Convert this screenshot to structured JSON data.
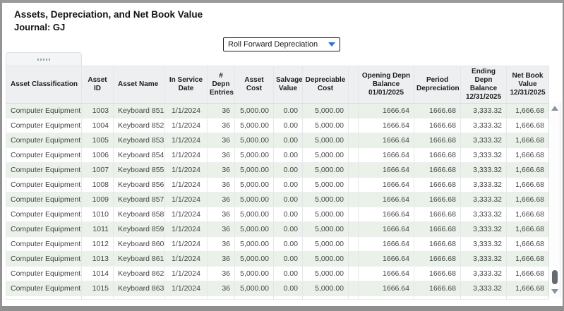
{
  "header": {
    "title": "Assets, Depreciation, and Net Book Value",
    "subtitle": "Journal: GJ"
  },
  "dropdown": {
    "value": "Roll Forward Depreciation"
  },
  "colors": {
    "accent_blue": "#2e6fd0",
    "row_alt_green": "#e9f1e9",
    "header_gray": "#edeff1",
    "frame_gray": "#949494"
  },
  "table": {
    "columns": [
      "Asset Classification",
      "Asset ID",
      "Asset Name",
      "In Service Date",
      "# Depn Entries",
      "Asset Cost",
      "Salvage Value",
      "Depreciable Cost",
      "",
      "Opening Depn Balance 01/01/2025",
      "Period Depreciation",
      "Ending Depn Balance 12/31/2025",
      "Net Book Value 12/31/2025"
    ],
    "rows": [
      [
        "Computer Equipment",
        "1003",
        "Keyboard 851",
        "1/1/2024",
        "36",
        "5,000.00",
        "0.00",
        "5,000.00",
        "",
        "1666.64",
        "1666.68",
        "3,333.32",
        "1,666.68"
      ],
      [
        "Computer Equipment",
        "1004",
        "Keyboard 852",
        "1/1/2024",
        "36",
        "5,000.00",
        "0.00",
        "5,000.00",
        "",
        "1666.64",
        "1666.68",
        "3,333.32",
        "1,666.68"
      ],
      [
        "Computer Equipment",
        "1005",
        "Keyboard 853",
        "1/1/2024",
        "36",
        "5,000.00",
        "0.00",
        "5,000.00",
        "",
        "1666.64",
        "1666.68",
        "3,333.32",
        "1,666.68"
      ],
      [
        "Computer Equipment",
        "1006",
        "Keyboard 854",
        "1/1/2024",
        "36",
        "5,000.00",
        "0.00",
        "5,000.00",
        "",
        "1666.64",
        "1666.68",
        "3,333.32",
        "1,666.68"
      ],
      [
        "Computer Equipment",
        "1007",
        "Keyboard 855",
        "1/1/2024",
        "36",
        "5,000.00",
        "0.00",
        "5,000.00",
        "",
        "1666.64",
        "1666.68",
        "3,333.32",
        "1,666.68"
      ],
      [
        "Computer Equipment",
        "1008",
        "Keyboard 856",
        "1/1/2024",
        "36",
        "5,000.00",
        "0.00",
        "5,000.00",
        "",
        "1666.64",
        "1666.68",
        "3,333.32",
        "1,666.68"
      ],
      [
        "Computer Equipment",
        "1009",
        "Keyboard 857",
        "1/1/2024",
        "36",
        "5,000.00",
        "0.00",
        "5,000.00",
        "",
        "1666.64",
        "1666.68",
        "3,333.32",
        "1,666.68"
      ],
      [
        "Computer Equipment",
        "1010",
        "Keyboard 858",
        "1/1/2024",
        "36",
        "5,000.00",
        "0.00",
        "5,000.00",
        "",
        "1666.64",
        "1666.68",
        "3,333.32",
        "1,666.68"
      ],
      [
        "Computer Equipment",
        "1011",
        "Keyboard 859",
        "1/1/2024",
        "36",
        "5,000.00",
        "0.00",
        "5,000.00",
        "",
        "1666.64",
        "1666.68",
        "3,333.32",
        "1,666.68"
      ],
      [
        "Computer Equipment",
        "1012",
        "Keyboard 860",
        "1/1/2024",
        "36",
        "5,000.00",
        "0.00",
        "5,000.00",
        "",
        "1666.64",
        "1666.68",
        "3,333.32",
        "1,666.68"
      ],
      [
        "Computer Equipment",
        "1013",
        "Keyboard 861",
        "1/1/2024",
        "36",
        "5,000.00",
        "0.00",
        "5,000.00",
        "",
        "1666.64",
        "1666.68",
        "3,333.32",
        "1,666.68"
      ],
      [
        "Computer Equipment",
        "1014",
        "Keyboard 862",
        "1/1/2024",
        "36",
        "5,000.00",
        "0.00",
        "5,000.00",
        "",
        "1666.64",
        "1666.68",
        "3,333.32",
        "1,666.68"
      ],
      [
        "Computer Equipment",
        "1015",
        "Keyboard 863",
        "1/1/2024",
        "36",
        "5,000.00",
        "0.00",
        "5,000.00",
        "",
        "1666.64",
        "1666.68",
        "3,333.32",
        "1,666.68"
      ]
    ]
  }
}
